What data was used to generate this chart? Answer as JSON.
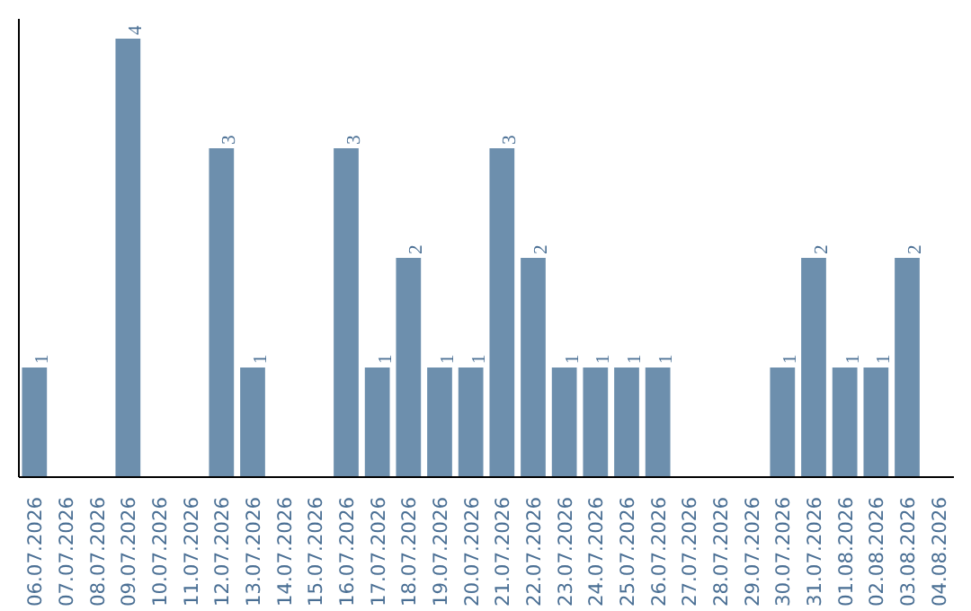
{
  "chart_data": {
    "type": "bar",
    "categories": [
      "06.07.2026",
      "07.07.2026",
      "08.07.2026",
      "09.07.2026",
      "10.07.2026",
      "11.07.2026",
      "12.07.2026",
      "13.07.2026",
      "14.07.2026",
      "15.07.2026",
      "16.07.2026",
      "17.07.2026",
      "18.07.2026",
      "19.07.2026",
      "20.07.2026",
      "21.07.2026",
      "22.07.2026",
      "23.07.2026",
      "24.07.2026",
      "25.07.2026",
      "26.07.2026",
      "27.07.2026",
      "28.07.2026",
      "29.07.2026",
      "30.07.2026",
      "31.07.2026",
      "01.08.2026",
      "02.08.2026",
      "03.08.2026",
      "04.08.2026"
    ],
    "values": [
      1,
      0,
      0,
      4,
      0,
      0,
      3,
      1,
      0,
      0,
      3,
      1,
      2,
      1,
      1,
      3,
      2,
      1,
      1,
      1,
      1,
      0,
      0,
      0,
      1,
      2,
      1,
      1,
      2,
      0
    ],
    "value_labels": [
      "1",
      null,
      null,
      "4",
      null,
      null,
      "3",
      "1",
      null,
      null,
      "3",
      "1",
      "2",
      "1",
      "1",
      "3",
      "2",
      "1",
      "1",
      "1",
      "1",
      null,
      null,
      null,
      "1",
      "2",
      "1",
      "1",
      "2",
      null
    ],
    "color": "#6d8fad",
    "grid": false,
    "tick_labels": "x"
  }
}
